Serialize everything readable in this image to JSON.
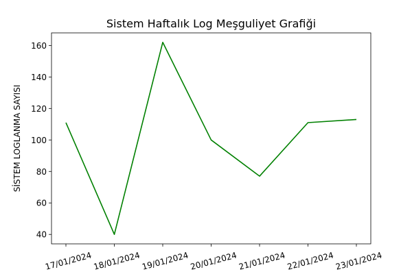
{
  "chart_data": {
    "type": "line",
    "title": "Sistem Haftalık Log Meşguliyet Grafiği",
    "xlabel": "",
    "ylabel": "SİSTEM LOGLANMA SAYISI",
    "categories": [
      "17/01/2024",
      "18/01/2024",
      "19/01/2024",
      "20/01/2024",
      "21/01/2024",
      "22/01/2024",
      "23/01/2024"
    ],
    "series": [
      {
        "values": [
          111,
          40,
          162,
          100,
          77,
          111,
          113
        ],
        "color": "#008000"
      }
    ],
    "ylim": [
      34,
      168
    ],
    "yticks": [
      40,
      60,
      80,
      100,
      120,
      140,
      160
    ],
    "grid": false,
    "legend": "none"
  }
}
